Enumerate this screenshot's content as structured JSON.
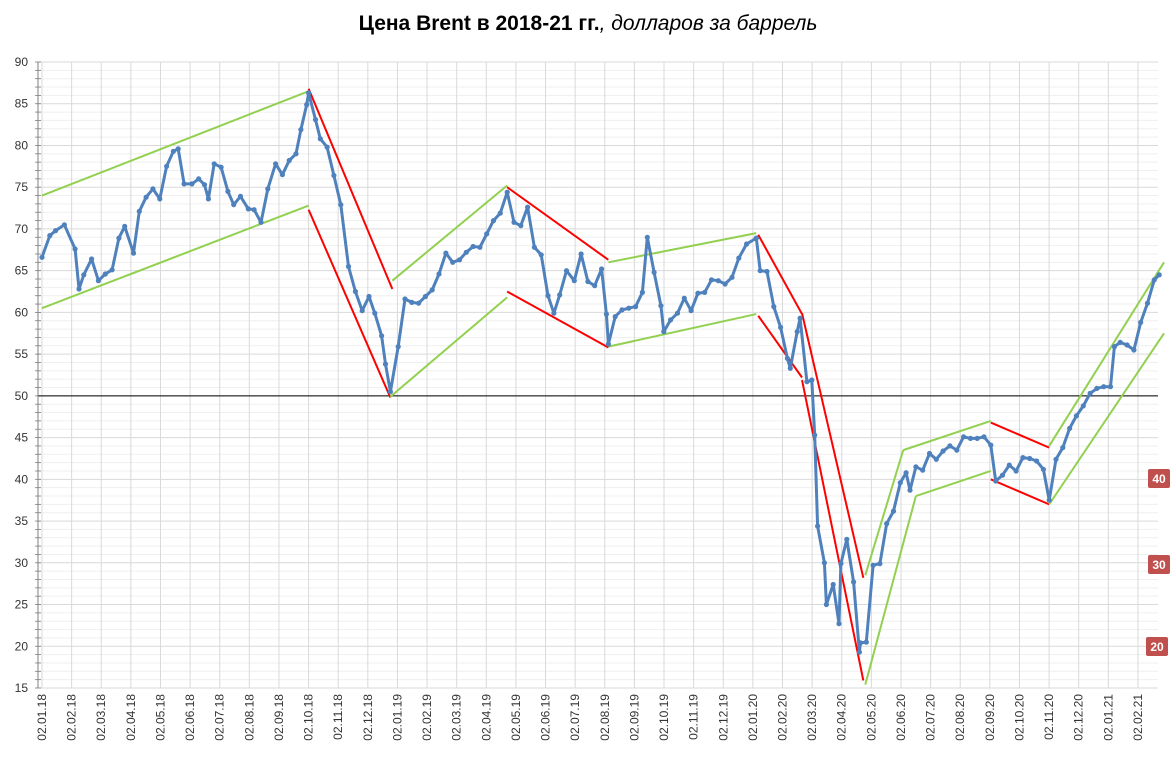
{
  "title_main": "Цена Brent в 2018-21 гг.",
  "title_unit": ", долларов за баррель",
  "colors": {
    "series": "#4f81bd",
    "up_channel": "#92d050",
    "down_channel": "#ff0000",
    "badge": "#c0504d",
    "grid": "#d9d9d9"
  },
  "badges": [
    "40",
    "30",
    "20"
  ],
  "chart_data": {
    "type": "line",
    "title": "Цена Brent в 2018-21 гг., долларов за баррель",
    "ylim": [
      15,
      90
    ],
    "yticks": [
      15,
      20,
      25,
      30,
      35,
      40,
      45,
      50,
      55,
      60,
      65,
      70,
      75,
      80,
      85,
      90
    ],
    "x_tick_labels": [
      "02.01.18",
      "02.02.18",
      "02.03.18",
      "02.04.18",
      "02.05.18",
      "02.06.18",
      "02.07.18",
      "02.08.18",
      "02.09.18",
      "02.10.18",
      "02.11.18",
      "02.12.18",
      "02.01.19",
      "02.02.19",
      "02.03.19",
      "02.04.19",
      "02.05.19",
      "02.06.19",
      "02.07.19",
      "02.08.19",
      "02.09.19",
      "02.10.19",
      "02.11.19",
      "02.12.19",
      "02.01.20",
      "02.02.20",
      "02.03.20",
      "02.04.20",
      "02.05.20",
      "02.06.20",
      "02.07.20",
      "02.08.20",
      "02.09.20",
      "02.10.20",
      "02.11.20",
      "02.12.20",
      "02.01.21",
      "02.02.21"
    ],
    "reference_line": 50,
    "grid": true,
    "series": [
      {
        "points": [
          [
            "2018-01-02",
            66.6
          ],
          [
            "2018-01-10",
            69.2
          ],
          [
            "2018-01-16",
            69.8
          ],
          [
            "2018-01-25",
            70.5
          ],
          [
            "2018-02-05",
            67.6
          ],
          [
            "2018-02-09",
            62.8
          ],
          [
            "2018-02-14",
            64.5
          ],
          [
            "2018-02-22",
            66.4
          ],
          [
            "2018-03-01",
            63.8
          ],
          [
            "2018-03-08",
            64.6
          ],
          [
            "2018-03-15",
            65.1
          ],
          [
            "2018-03-22",
            68.9
          ],
          [
            "2018-03-28",
            70.3
          ],
          [
            "2018-04-06",
            67.1
          ],
          [
            "2018-04-12",
            72.1
          ],
          [
            "2018-04-19",
            73.8
          ],
          [
            "2018-04-26",
            74.8
          ],
          [
            "2018-05-03",
            73.6
          ],
          [
            "2018-05-10",
            77.5
          ],
          [
            "2018-05-17",
            79.3
          ],
          [
            "2018-05-22",
            79.6
          ],
          [
            "2018-05-28",
            75.4
          ],
          [
            "2018-06-05",
            75.4
          ],
          [
            "2018-06-12",
            76.0
          ],
          [
            "2018-06-18",
            75.3
          ],
          [
            "2018-06-22",
            73.6
          ],
          [
            "2018-06-28",
            77.8
          ],
          [
            "2018-07-05",
            77.4
          ],
          [
            "2018-07-12",
            74.5
          ],
          [
            "2018-07-18",
            72.9
          ],
          [
            "2018-07-25",
            73.9
          ],
          [
            "2018-08-02",
            72.4
          ],
          [
            "2018-08-08",
            72.3
          ],
          [
            "2018-08-15",
            70.8
          ],
          [
            "2018-08-22",
            74.8
          ],
          [
            "2018-08-30",
            77.8
          ],
          [
            "2018-09-06",
            76.5
          ],
          [
            "2018-09-13",
            78.2
          ],
          [
            "2018-09-20",
            79.0
          ],
          [
            "2018-09-25",
            81.9
          ],
          [
            "2018-10-01",
            84.9
          ],
          [
            "2018-10-03",
            86.3
          ],
          [
            "2018-10-10",
            83.1
          ],
          [
            "2018-10-15",
            80.8
          ],
          [
            "2018-10-22",
            79.8
          ],
          [
            "2018-10-29",
            76.4
          ],
          [
            "2018-11-05",
            72.9
          ],
          [
            "2018-11-13",
            65.5
          ],
          [
            "2018-11-20",
            62.5
          ],
          [
            "2018-11-27",
            60.2
          ],
          [
            "2018-12-04",
            61.9
          ],
          [
            "2018-12-10",
            59.9
          ],
          [
            "2018-12-17",
            57.2
          ],
          [
            "2018-12-21",
            53.8
          ],
          [
            "2018-12-26",
            50.5
          ],
          [
            "2019-01-03",
            55.9
          ],
          [
            "2019-01-10",
            61.6
          ],
          [
            "2019-01-17",
            61.2
          ],
          [
            "2019-01-24",
            61.1
          ],
          [
            "2019-01-31",
            61.9
          ],
          [
            "2019-02-07",
            62.7
          ],
          [
            "2019-02-14",
            64.6
          ],
          [
            "2019-02-21",
            67.1
          ],
          [
            "2019-02-28",
            66.0
          ],
          [
            "2019-03-07",
            66.3
          ],
          [
            "2019-03-14",
            67.2
          ],
          [
            "2019-03-21",
            67.9
          ],
          [
            "2019-03-28",
            67.8
          ],
          [
            "2019-04-04",
            69.4
          ],
          [
            "2019-04-11",
            71.0
          ],
          [
            "2019-04-18",
            71.9
          ],
          [
            "2019-04-25",
            74.4
          ],
          [
            "2019-05-02",
            70.8
          ],
          [
            "2019-05-09",
            70.4
          ],
          [
            "2019-05-16",
            72.6
          ],
          [
            "2019-05-23",
            67.8
          ],
          [
            "2019-05-30",
            66.9
          ],
          [
            "2019-06-06",
            62.0
          ],
          [
            "2019-06-12",
            59.9
          ],
          [
            "2019-06-18",
            62.1
          ],
          [
            "2019-06-25",
            65.0
          ],
          [
            "2019-07-03",
            63.8
          ],
          [
            "2019-07-10",
            67.0
          ],
          [
            "2019-07-17",
            63.7
          ],
          [
            "2019-07-24",
            63.2
          ],
          [
            "2019-07-31",
            65.2
          ],
          [
            "2019-08-05",
            59.8
          ],
          [
            "2019-08-07",
            56.2
          ],
          [
            "2019-08-14",
            59.5
          ],
          [
            "2019-08-21",
            60.3
          ],
          [
            "2019-08-28",
            60.5
          ],
          [
            "2019-09-04",
            60.7
          ],
          [
            "2019-09-11",
            62.4
          ],
          [
            "2019-09-16",
            69.0
          ],
          [
            "2019-09-23",
            64.8
          ],
          [
            "2019-09-30",
            60.8
          ],
          [
            "2019-10-03",
            57.7
          ],
          [
            "2019-10-10",
            59.1
          ],
          [
            "2019-10-17",
            59.9
          ],
          [
            "2019-10-24",
            61.7
          ],
          [
            "2019-10-31",
            60.2
          ],
          [
            "2019-11-07",
            62.3
          ],
          [
            "2019-11-14",
            62.4
          ],
          [
            "2019-11-21",
            63.9
          ],
          [
            "2019-11-28",
            63.8
          ],
          [
            "2019-12-05",
            63.4
          ],
          [
            "2019-12-12",
            64.2
          ],
          [
            "2019-12-19",
            66.5
          ],
          [
            "2019-12-27",
            68.2
          ],
          [
            "2020-01-06",
            68.9
          ],
          [
            "2020-01-10",
            65.0
          ],
          [
            "2020-01-17",
            64.9
          ],
          [
            "2020-01-24",
            60.7
          ],
          [
            "2020-01-31",
            58.2
          ],
          [
            "2020-02-07",
            54.5
          ],
          [
            "2020-02-10",
            53.3
          ],
          [
            "2020-02-17",
            57.7
          ],
          [
            "2020-02-20",
            59.3
          ],
          [
            "2020-02-27",
            51.7
          ],
          [
            "2020-03-03",
            51.9
          ],
          [
            "2020-03-06",
            45.3
          ],
          [
            "2020-03-09",
            34.4
          ],
          [
            "2020-03-16",
            30.0
          ],
          [
            "2020-03-18",
            25.0
          ],
          [
            "2020-03-25",
            27.4
          ],
          [
            "2020-03-31",
            22.7
          ],
          [
            "2020-04-02",
            29.9
          ],
          [
            "2020-04-08",
            32.8
          ],
          [
            "2020-04-15",
            27.7
          ],
          [
            "2020-04-21",
            19.3
          ],
          [
            "2020-04-22",
            20.4
          ],
          [
            "2020-04-28",
            20.5
          ],
          [
            "2020-05-05",
            29.7
          ],
          [
            "2020-05-12",
            29.9
          ],
          [
            "2020-05-19",
            34.7
          ],
          [
            "2020-05-26",
            36.2
          ],
          [
            "2020-06-02",
            39.6
          ],
          [
            "2020-06-08",
            40.8
          ],
          [
            "2020-06-12",
            38.7
          ],
          [
            "2020-06-18",
            41.5
          ],
          [
            "2020-06-25",
            41.1
          ],
          [
            "2020-07-02",
            43.1
          ],
          [
            "2020-07-09",
            42.4
          ],
          [
            "2020-07-16",
            43.4
          ],
          [
            "2020-07-23",
            44.0
          ],
          [
            "2020-07-30",
            43.5
          ],
          [
            "2020-08-06",
            45.1
          ],
          [
            "2020-08-13",
            44.9
          ],
          [
            "2020-08-20",
            44.9
          ],
          [
            "2020-08-27",
            45.1
          ],
          [
            "2020-09-03",
            44.1
          ],
          [
            "2020-09-08",
            39.8
          ],
          [
            "2020-09-15",
            40.5
          ],
          [
            "2020-09-22",
            41.7
          ],
          [
            "2020-09-29",
            41.0
          ],
          [
            "2020-10-06",
            42.6
          ],
          [
            "2020-10-13",
            42.5
          ],
          [
            "2020-10-20",
            42.2
          ],
          [
            "2020-10-27",
            41.2
          ],
          [
            "2020-11-02",
            37.5
          ],
          [
            "2020-11-09",
            42.4
          ],
          [
            "2020-11-16",
            43.8
          ],
          [
            "2020-11-23",
            46.1
          ],
          [
            "2020-11-30",
            47.6
          ],
          [
            "2020-12-07",
            48.8
          ],
          [
            "2020-12-14",
            50.3
          ],
          [
            "2020-12-21",
            50.9
          ],
          [
            "2020-12-28",
            51.1
          ],
          [
            "2021-01-04",
            51.1
          ],
          [
            "2021-01-08",
            55.9
          ],
          [
            "2021-01-14",
            56.4
          ],
          [
            "2021-01-21",
            56.1
          ],
          [
            "2021-01-28",
            55.5
          ],
          [
            "2021-02-04",
            58.8
          ],
          [
            "2021-02-11",
            61.1
          ],
          [
            "2021-02-18",
            63.9
          ],
          [
            "2021-02-23",
            64.5
          ]
        ]
      }
    ],
    "channels": [
      {
        "color": "up",
        "from": [
          "2018-01-02",
          74.0
        ],
        "to": [
          "2018-10-03",
          86.5
        ]
      },
      {
        "color": "up",
        "from": [
          "2018-01-02",
          60.5
        ],
        "to": [
          "2018-10-03",
          72.8
        ]
      },
      {
        "color": "down",
        "from": [
          "2018-10-03",
          86.8
        ],
        "to": [
          "2018-12-28",
          62.8
        ]
      },
      {
        "color": "down",
        "from": [
          "2018-10-03",
          72.3
        ],
        "to": [
          "2018-12-26",
          49.8
        ]
      },
      {
        "color": "up",
        "from": [
          "2018-12-28",
          63.8
        ],
        "to": [
          "2019-04-25",
          75.2
        ]
      },
      {
        "color": "up",
        "from": [
          "2018-12-26",
          49.9
        ],
        "to": [
          "2019-04-25",
          61.8
        ]
      },
      {
        "color": "down",
        "from": [
          "2019-04-25",
          75.0
        ],
        "to": [
          "2019-08-07",
          66.3
        ]
      },
      {
        "color": "down",
        "from": [
          "2019-04-25",
          62.5
        ],
        "to": [
          "2019-08-07",
          55.8
        ]
      },
      {
        "color": "up",
        "from": [
          "2019-08-07",
          66.0
        ],
        "to": [
          "2020-01-06",
          69.5
        ]
      },
      {
        "color": "up",
        "from": [
          "2019-08-07",
          55.9
        ],
        "to": [
          "2020-01-06",
          59.8
        ]
      },
      {
        "color": "down",
        "from": [
          "2020-01-08",
          69.3
        ],
        "to": [
          "2020-02-22",
          59.8
        ]
      },
      {
        "color": "down",
        "from": [
          "2020-01-08",
          59.6
        ],
        "to": [
          "2020-02-22",
          52.2
        ]
      },
      {
        "color": "down",
        "from": [
          "2020-02-22",
          59.9
        ],
        "to": [
          "2020-04-25",
          28.2
        ]
      },
      {
        "color": "down",
        "from": [
          "2020-02-22",
          51.9
        ],
        "to": [
          "2020-04-25",
          15.9
        ]
      },
      {
        "color": "up",
        "from": [
          "2020-04-27",
          28.5
        ],
        "to": [
          "2020-06-05",
          43.5
        ]
      },
      {
        "color": "up",
        "from": [
          "2020-04-27",
          15.4
        ],
        "to": [
          "2020-06-18",
          38.0
        ]
      },
      {
        "color": "up",
        "from": [
          "2020-06-05",
          43.5
        ],
        "to": [
          "2020-09-03",
          47.0
        ]
      },
      {
        "color": "up",
        "from": [
          "2020-06-18",
          38.0
        ],
        "to": [
          "2020-09-03",
          41.0
        ]
      },
      {
        "color": "down",
        "from": [
          "2020-09-03",
          46.8
        ],
        "to": [
          "2020-11-02",
          43.8
        ]
      },
      {
        "color": "down",
        "from": [
          "2020-09-03",
          40.0
        ],
        "to": [
          "2020-11-02",
          37.0
        ]
      },
      {
        "color": "up",
        "from": [
          "2020-11-02",
          44.0
        ],
        "to": [
          "2021-02-28",
          66.0
        ]
      },
      {
        "color": "up",
        "from": [
          "2020-11-02",
          37.0
        ],
        "to": [
          "2021-02-28",
          57.5
        ]
      }
    ]
  }
}
